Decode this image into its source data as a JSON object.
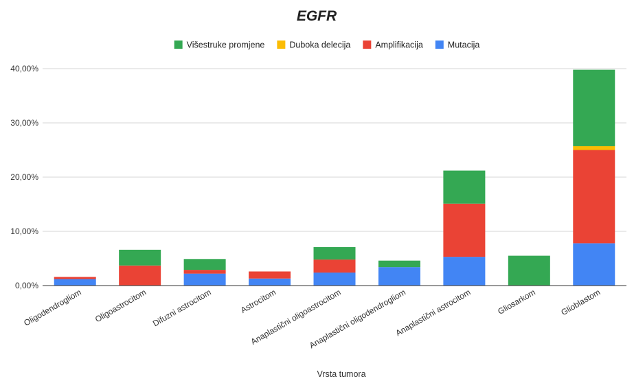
{
  "chart_data": {
    "type": "bar",
    "stacked": true,
    "title": "EGFR",
    "xlabel": "Vrsta tumora",
    "ylabel": "",
    "ylim": [
      0,
      40
    ],
    "yticks": [
      0,
      10,
      20,
      30,
      40
    ],
    "ytick_labels": [
      "0,00%",
      "10,00%",
      "20,00%",
      "30,00%",
      "40,00%"
    ],
    "grid": true,
    "legend_position": "top",
    "categories": [
      "Oligodendrogliom",
      "Oligoastrocitom",
      "Difuzni astrocitom",
      "Astrocitom",
      "Anaplastični oligoastrocitom",
      "Anaplastični oligodendrogliom",
      "Anaplastični astrocitom",
      "Gliosarkom",
      "Glioblastom"
    ],
    "series": [
      {
        "name": "Mutacija",
        "color": "#4285f4",
        "values": [
          1.2,
          0,
          2.2,
          1.3,
          2.4,
          3.4,
          5.3,
          0,
          7.8
        ]
      },
      {
        "name": "Amplifikacija",
        "color": "#ea4335",
        "values": [
          0.4,
          3.7,
          0.7,
          1.3,
          2.4,
          0,
          9.8,
          0,
          17.2
        ]
      },
      {
        "name": "Duboka delecija",
        "color": "#fbbc04",
        "values": [
          0,
          0,
          0,
          0,
          0,
          0,
          0,
          0,
          0.7
        ]
      },
      {
        "name": "Višestruke promjene",
        "color": "#34a853",
        "values": [
          0,
          2.9,
          2.0,
          0,
          2.3,
          1.2,
          6.1,
          5.5,
          14.1
        ]
      }
    ],
    "legend_order": [
      "Višestruke promjene",
      "Duboka delecija",
      "Amplifikacija",
      "Mutacija"
    ]
  }
}
